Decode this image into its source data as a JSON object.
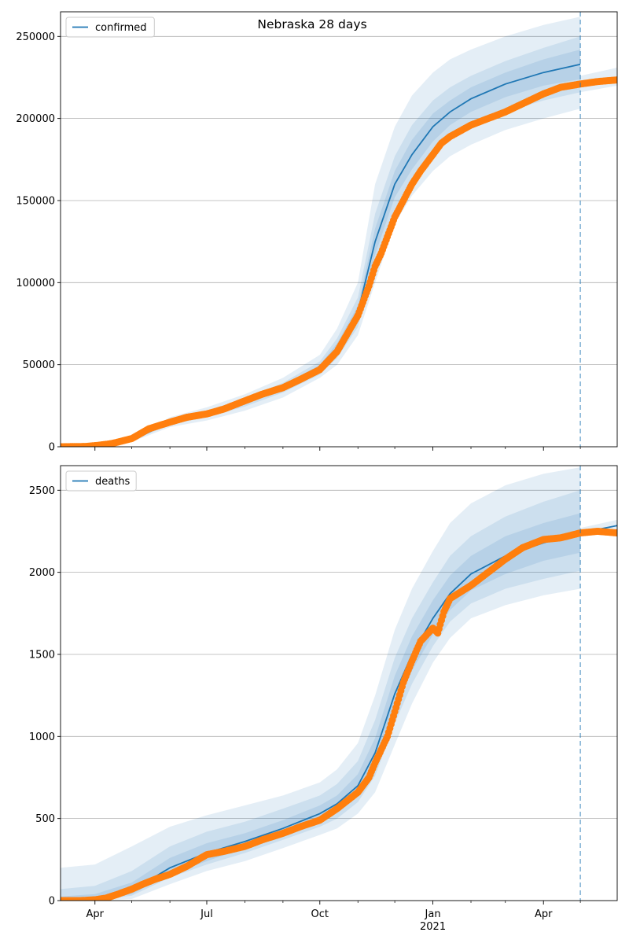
{
  "figure": {
    "title": "Nebraska 28 days",
    "colors": {
      "model_line": "#1f77b4",
      "observed": "#ff7f0e",
      "band": "#1f77b4",
      "grid": "#b0b0b0",
      "cutoff": "#1f77b4"
    }
  },
  "chart_data": [
    {
      "type": "line",
      "title": "Nebraska 28 days",
      "legend": {
        "entries": [
          "confirmed"
        ],
        "placement": "top-left"
      },
      "xlabel": "",
      "ylabel": "",
      "x_ticks": [
        "Apr",
        "Jul",
        "Oct",
        "Jan",
        "Apr"
      ],
      "x_tick_sublabels": [
        "",
        "",
        "",
        "2021",
        ""
      ],
      "x_tick_dates": [
        "2020-04-01",
        "2020-07-01",
        "2020-10-01",
        "2021-01-01",
        "2021-04-01"
      ],
      "x_range": [
        "2020-03-04",
        "2021-05-31"
      ],
      "forecast_start": "2021-05-01",
      "y_ticks": [
        0,
        50000,
        100000,
        150000,
        200000,
        250000
      ],
      "ylim": [
        0,
        265000
      ],
      "grid": "horizontal",
      "model": {
        "name": "confirmed",
        "x": [
          "2020-03-04",
          "2020-04-01",
          "2020-05-01",
          "2020-06-01",
          "2020-07-01",
          "2020-08-01",
          "2020-09-01",
          "2020-10-01",
          "2020-10-15",
          "2020-11-01",
          "2020-11-15",
          "2020-12-01",
          "2020-12-15",
          "2021-01-01",
          "2021-01-15",
          "2021-02-01",
          "2021-03-01",
          "2021-04-01",
          "2021-05-01"
        ],
        "y": [
          0,
          0,
          4000,
          15000,
          20000,
          27000,
          36000,
          48000,
          60000,
          82000,
          125000,
          160000,
          178000,
          195000,
          204000,
          212000,
          221000,
          228000,
          233000
        ]
      },
      "bands": [
        {
          "level": "outer",
          "x": [
            "2020-03-04",
            "2020-04-01",
            "2020-05-01",
            "2020-06-01",
            "2020-07-01",
            "2020-08-01",
            "2020-09-01",
            "2020-10-01",
            "2020-10-15",
            "2020-11-01",
            "2020-11-15",
            "2020-12-01",
            "2020-12-15",
            "2021-01-01",
            "2021-01-15",
            "2021-02-01",
            "2021-03-01",
            "2021-04-01",
            "2021-05-01"
          ],
          "upper": [
            0,
            0,
            5000,
            18000,
            24000,
            32000,
            42000,
            56000,
            72000,
            100000,
            160000,
            195000,
            214000,
            228000,
            236000,
            242000,
            250000,
            257000,
            262000
          ],
          "lower": [
            0,
            0,
            3000,
            12000,
            16000,
            22000,
            30000,
            42000,
            50000,
            68000,
            100000,
            136000,
            153000,
            168000,
            177000,
            184000,
            193000,
            200000,
            206000
          ]
        },
        {
          "level": "middle",
          "x": [
            "2020-03-04",
            "2020-04-01",
            "2020-05-01",
            "2020-06-01",
            "2020-07-01",
            "2020-08-01",
            "2020-09-01",
            "2020-10-01",
            "2020-10-15",
            "2020-11-01",
            "2020-11-15",
            "2020-12-01",
            "2020-12-15",
            "2021-01-01",
            "2021-01-15",
            "2021-02-01",
            "2021-03-01",
            "2021-04-01",
            "2021-05-01"
          ],
          "upper": [
            0,
            0,
            4600,
            16500,
            22000,
            29500,
            39000,
            52000,
            66000,
            91000,
            142000,
            177000,
            196000,
            211000,
            219000,
            226000,
            235000,
            243000,
            250000
          ],
          "lower": [
            0,
            0,
            3400,
            13500,
            18000,
            24500,
            33000,
            44000,
            54000,
            73000,
            110000,
            145000,
            161000,
            177000,
            187000,
            195000,
            204000,
            211000,
            216000
          ]
        },
        {
          "level": "inner",
          "x": [
            "2020-03-04",
            "2020-04-01",
            "2020-05-01",
            "2020-06-01",
            "2020-07-01",
            "2020-08-01",
            "2020-09-01",
            "2020-10-01",
            "2020-10-15",
            "2020-11-01",
            "2020-11-15",
            "2020-12-01",
            "2020-12-15",
            "2021-01-01",
            "2021-01-15",
            "2021-02-01",
            "2021-03-01",
            "2021-04-01",
            "2021-05-01"
          ],
          "upper": [
            0,
            0,
            4300,
            15800,
            21000,
            28200,
            37500,
            50000,
            63000,
            86000,
            133000,
            168000,
            187000,
            203000,
            211000,
            219000,
            228000,
            236000,
            242000
          ],
          "lower": [
            0,
            0,
            3700,
            14200,
            19000,
            25800,
            34500,
            46000,
            57000,
            78000,
            117000,
            152000,
            169000,
            186000,
            196000,
            204000,
            213000,
            220000,
            224000
          ]
        }
      ],
      "future_band": {
        "x": [
          "2021-05-01",
          "2021-05-31"
        ],
        "upper": [
          226000,
          231000
        ],
        "lower": [
          216000,
          220000
        ]
      },
      "observed": {
        "x": [
          "2020-03-04",
          "2020-03-25",
          "2020-04-05",
          "2020-04-15",
          "2020-05-01",
          "2020-05-15",
          "2020-06-01",
          "2020-06-15",
          "2020-07-01",
          "2020-07-15",
          "2020-08-01",
          "2020-08-15",
          "2020-09-01",
          "2020-09-15",
          "2020-10-01",
          "2020-10-15",
          "2020-11-01",
          "2020-11-10",
          "2020-11-15",
          "2020-11-20",
          "2020-11-25",
          "2020-12-01",
          "2020-12-08",
          "2020-12-15",
          "2020-12-22",
          "2021-01-01",
          "2021-01-08",
          "2021-01-15",
          "2021-02-01",
          "2021-02-15",
          "2021-03-01",
          "2021-03-15",
          "2021-04-01",
          "2021-04-15",
          "2021-05-01",
          "2021-05-15",
          "2021-05-31"
        ],
        "y": [
          0,
          200,
          1000,
          2000,
          5000,
          11000,
          15000,
          18000,
          20000,
          23000,
          28000,
          32000,
          36000,
          41000,
          47000,
          58000,
          80000,
          98000,
          110000,
          118000,
          128000,
          140000,
          150000,
          160000,
          168000,
          178000,
          185000,
          189000,
          196000,
          200000,
          204000,
          209000,
          215000,
          219000,
          221000,
          222500,
          223500
        ]
      }
    },
    {
      "type": "line",
      "title": "",
      "legend": {
        "entries": [
          "deaths"
        ],
        "placement": "top-left"
      },
      "xlabel": "",
      "ylabel": "",
      "x_ticks": [
        "Apr",
        "Jul",
        "Oct",
        "Jan",
        "Apr"
      ],
      "x_tick_sublabels": [
        "",
        "",
        "",
        "2021",
        ""
      ],
      "x_tick_dates": [
        "2020-04-01",
        "2020-07-01",
        "2020-10-01",
        "2021-01-01",
        "2021-04-01"
      ],
      "x_range": [
        "2020-03-04",
        "2021-05-31"
      ],
      "forecast_start": "2021-05-01",
      "y_ticks": [
        0,
        500,
        1000,
        1500,
        2000,
        2500
      ],
      "ylim": [
        0,
        2650
      ],
      "grid": "horizontal",
      "model": {
        "name": "deaths",
        "x": [
          "2020-03-04",
          "2020-04-01",
          "2020-05-01",
          "2020-06-01",
          "2020-07-01",
          "2020-08-01",
          "2020-09-01",
          "2020-10-01",
          "2020-10-15",
          "2020-11-01",
          "2020-11-15",
          "2020-12-01",
          "2020-12-15",
          "2021-01-01",
          "2021-01-15",
          "2021-02-01",
          "2021-03-01",
          "2021-04-01",
          "2021-05-01",
          "2021-05-31"
        ],
        "y": [
          0,
          5,
          60,
          200,
          290,
          360,
          440,
          530,
          590,
          700,
          900,
          1260,
          1500,
          1720,
          1870,
          1990,
          2100,
          2180,
          2240,
          2285
        ]
      },
      "bands": [
        {
          "level": "outer",
          "x": [
            "2020-03-04",
            "2020-04-01",
            "2020-05-01",
            "2020-06-01",
            "2020-07-01",
            "2020-08-01",
            "2020-09-01",
            "2020-10-01",
            "2020-10-15",
            "2020-11-01",
            "2020-11-15",
            "2020-12-01",
            "2020-12-15",
            "2021-01-01",
            "2021-01-15",
            "2021-02-01",
            "2021-03-01",
            "2021-04-01",
            "2021-05-01"
          ],
          "upper": [
            200,
            220,
            330,
            450,
            520,
            580,
            640,
            720,
            800,
            960,
            1250,
            1650,
            1900,
            2130,
            2300,
            2420,
            2530,
            2600,
            2640
          ],
          "lower": [
            0,
            0,
            10,
            100,
            180,
            240,
            320,
            400,
            440,
            530,
            660,
            950,
            1200,
            1450,
            1600,
            1720,
            1800,
            1860,
            1900
          ]
        },
        {
          "level": "middle",
          "x": [
            "2020-03-04",
            "2020-04-01",
            "2020-05-01",
            "2020-06-01",
            "2020-07-01",
            "2020-08-01",
            "2020-09-01",
            "2020-10-01",
            "2020-10-15",
            "2020-11-01",
            "2020-11-15",
            "2020-12-01",
            "2020-12-15",
            "2021-01-01",
            "2021-01-15",
            "2021-02-01",
            "2021-03-01",
            "2021-04-01",
            "2021-05-01"
          ],
          "upper": [
            70,
            90,
            180,
            330,
            420,
            480,
            560,
            640,
            710,
            850,
            1100,
            1480,
            1720,
            1940,
            2100,
            2220,
            2340,
            2430,
            2500
          ],
          "lower": [
            0,
            0,
            30,
            140,
            220,
            290,
            370,
            450,
            500,
            600,
            760,
            1080,
            1320,
            1550,
            1700,
            1810,
            1900,
            1960,
            2010
          ]
        },
        {
          "level": "inner",
          "x": [
            "2020-03-04",
            "2020-04-01",
            "2020-05-01",
            "2020-06-01",
            "2020-07-01",
            "2020-08-01",
            "2020-09-01",
            "2020-10-01",
            "2020-10-15",
            "2020-11-01",
            "2020-11-15",
            "2020-12-01",
            "2020-12-15",
            "2021-01-01",
            "2021-01-15",
            "2021-02-01",
            "2021-03-01",
            "2021-04-01",
            "2021-05-01"
          ],
          "upper": [
            25,
            40,
            110,
            260,
            350,
            410,
            490,
            580,
            640,
            770,
            990,
            1370,
            1610,
            1830,
            1980,
            2100,
            2220,
            2300,
            2360
          ],
          "lower": [
            0,
            0,
            40,
            160,
            240,
            320,
            400,
            490,
            545,
            640,
            820,
            1160,
            1400,
            1620,
            1770,
            1890,
            1990,
            2070,
            2120
          ]
        }
      ],
      "future_band": {
        "x": [
          "2021-05-01",
          "2021-05-31"
        ],
        "upper": [
          2270,
          2320
        ],
        "lower": [
          2220,
          2260
        ]
      },
      "observed": {
        "x": [
          "2020-03-04",
          "2020-03-20",
          "2020-04-01",
          "2020-04-10",
          "2020-04-20",
          "2020-05-01",
          "2020-05-10",
          "2020-05-20",
          "2020-06-01",
          "2020-06-15",
          "2020-07-01",
          "2020-07-15",
          "2020-08-01",
          "2020-08-15",
          "2020-09-01",
          "2020-09-15",
          "2020-10-01",
          "2020-10-15",
          "2020-11-01",
          "2020-11-10",
          "2020-11-15",
          "2020-11-20",
          "2020-11-25",
          "2020-12-01",
          "2020-12-08",
          "2020-12-15",
          "2020-12-22",
          "2021-01-01",
          "2021-01-05",
          "2021-01-10",
          "2021-01-15",
          "2021-02-01",
          "2021-02-15",
          "2021-03-01",
          "2021-03-15",
          "2021-04-01",
          "2021-04-15",
          "2021-05-01",
          "2021-05-15",
          "2021-05-31"
        ],
        "y": [
          0,
          0,
          5,
          15,
          40,
          70,
          100,
          130,
          160,
          210,
          280,
          300,
          330,
          370,
          410,
          450,
          490,
          560,
          660,
          750,
          840,
          920,
          1000,
          1150,
          1330,
          1460,
          1580,
          1660,
          1630,
          1760,
          1840,
          1920,
          2000,
          2080,
          2150,
          2200,
          2210,
          2240,
          2250,
          2240
        ]
      }
    }
  ]
}
